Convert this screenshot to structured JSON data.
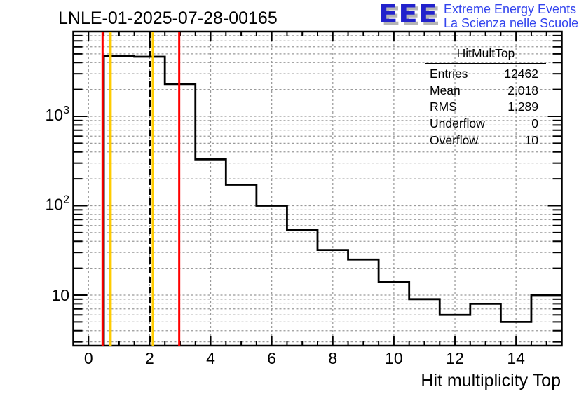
{
  "page": {
    "title": "LNLE-01-2025-07-28-00165"
  },
  "logo": {
    "acronym": "EEE",
    "line1": "Extreme Energy Events",
    "line2": "La Scienza nelle Scuole"
  },
  "stats": {
    "header": "HitMultTop",
    "rows": [
      {
        "label": "Entries",
        "value": "12462"
      },
      {
        "label": "Mean",
        "value": "2.018"
      },
      {
        "label": "RMS",
        "value": "1.289"
      },
      {
        "label": "Underflow",
        "value": "0"
      },
      {
        "label": "Overflow",
        "value": "10"
      }
    ]
  },
  "colors": {
    "histogram_line": "#000000",
    "red_threshold": "#ff0000",
    "yellow_threshold": "#ffcc00",
    "grid": "#9a9a9a",
    "frame": "#000000",
    "logo_blue": "#2222cc",
    "logo_text_blue": "#3344ee",
    "logo_shadow": "#b5b5b5"
  },
  "chart_data": {
    "type": "bar",
    "style": "root-step-histogram",
    "title": "LNLE-01-2025-07-28-00165",
    "xlabel": "Hit multiplicity Top",
    "ylabel": "",
    "yscale": "log",
    "grid": "dashed gray at every x major tick and every y tick (log minors included)",
    "legend_position": "none",
    "bin_centers": [
      1,
      2,
      3,
      4,
      5,
      6,
      7,
      8,
      9,
      10,
      11,
      12,
      13,
      14,
      15
    ],
    "bin_edges": [
      0.5,
      1.5,
      2.5,
      3.5,
      4.5,
      5.5,
      6.5,
      7.5,
      8.5,
      9.5,
      10.5,
      11.5,
      12.5,
      13.5,
      14.5,
      15.5
    ],
    "values": [
      4750,
      4640,
      2300,
      330,
      172,
      100,
      54,
      32,
      25,
      14,
      9,
      6,
      8,
      5,
      10
    ],
    "underflow": 0,
    "overflow": 10,
    "entries": 12462,
    "mean": 2.018,
    "rms": 1.289,
    "xlim": [
      -0.5,
      15.5
    ],
    "ylim": [
      2.72,
      8890
    ],
    "x_major_ticks": [
      0,
      2,
      4,
      6,
      8,
      10,
      12,
      14
    ],
    "x_tick_labels": [
      "0",
      "2",
      "4",
      "6",
      "8",
      "10",
      "12",
      "14"
    ],
    "x_minor_step": 0.5,
    "y_decade_exponents": [
      1,
      2,
      3
    ],
    "reference_lines": [
      {
        "name": "red-lower-threshold",
        "x": 0.46,
        "color": "#ff0000",
        "style": "solid"
      },
      {
        "name": "yellow-lower-threshold",
        "x": 0.72,
        "color": "#ffcc00",
        "style": "solid"
      },
      {
        "name": "mean-marker-dashed",
        "x": 2.018,
        "color": "#000000",
        "style": "dashed"
      },
      {
        "name": "yellow-upper-threshold",
        "x": 2.11,
        "color": "#ffcc00",
        "style": "solid"
      },
      {
        "name": "red-upper-threshold",
        "x": 2.97,
        "color": "#ff0000",
        "style": "solid"
      }
    ]
  }
}
